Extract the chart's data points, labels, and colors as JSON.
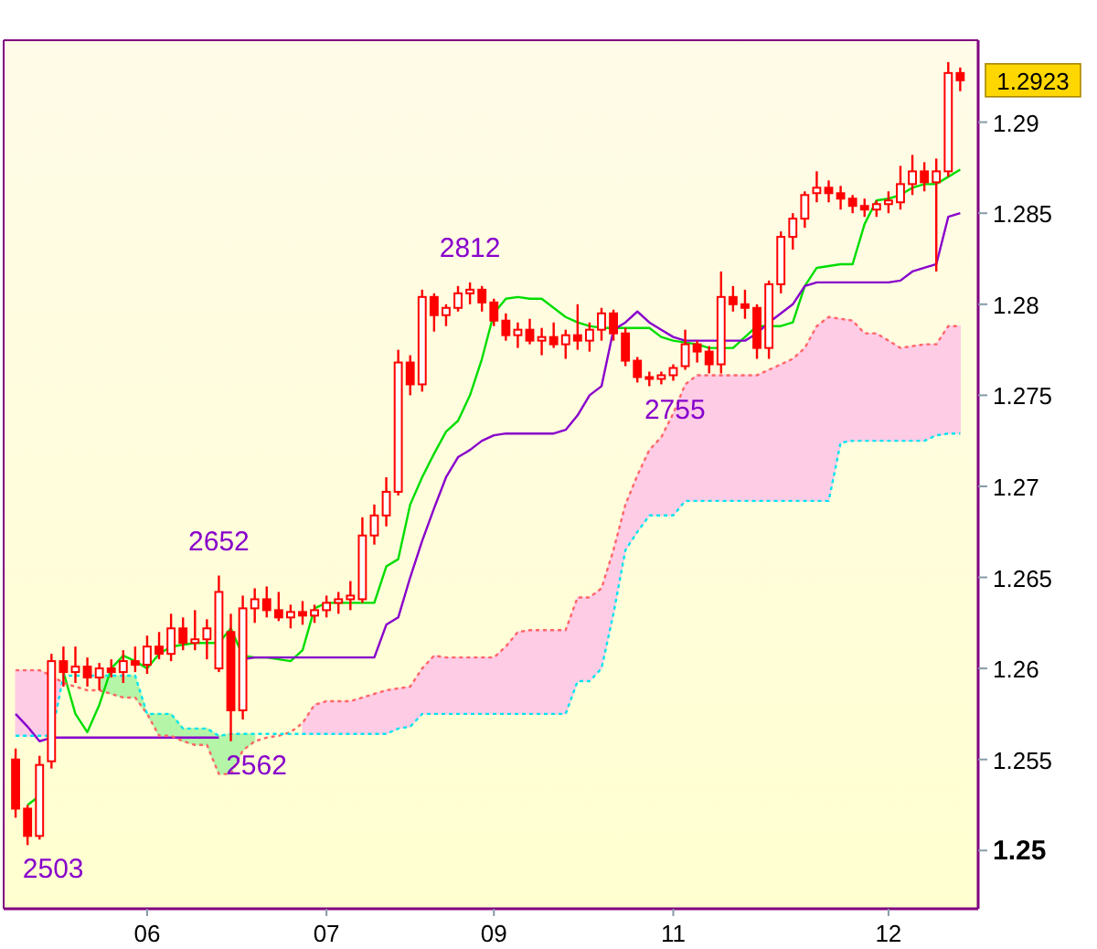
{
  "chart_data": {
    "type": "candlestick",
    "categories": [
      null,
      null,
      null,
      null,
      null,
      null,
      null,
      null,
      null,
      null,
      null,
      "06",
      null,
      null,
      null,
      null,
      null,
      null,
      null,
      null,
      null,
      null,
      null,
      null,
      null,
      null,
      "07",
      null,
      null,
      null,
      null,
      null,
      null,
      null,
      null,
      null,
      null,
      null,
      null,
      null,
      "09",
      null,
      null,
      null,
      null,
      null,
      null,
      null,
      null,
      null,
      null,
      null,
      null,
      null,
      null,
      "11",
      null,
      null,
      null,
      null,
      null,
      null,
      null,
      null,
      null,
      null,
      null,
      null,
      null,
      null,
      null,
      null,
      null,
      "12",
      null,
      null,
      null,
      null,
      null,
      null
    ],
    "ohlc": [
      [
        1.255,
        1.2556,
        1.2518,
        1.2523
      ],
      [
        1.2523,
        1.2525,
        1.2503,
        1.2508
      ],
      [
        1.2508,
        1.2552,
        1.2506,
        1.2547
      ],
      [
        1.2549,
        1.2608,
        1.2545,
        1.2604
      ],
      [
        1.2604,
        1.2612,
        1.259,
        1.2598
      ],
      [
        1.2598,
        1.2612,
        1.2592,
        1.2601
      ],
      [
        1.2601,
        1.2606,
        1.259,
        1.2595
      ],
      [
        1.2595,
        1.2603,
        1.2588,
        1.26
      ],
      [
        1.26,
        1.2605,
        1.2595,
        1.2598
      ],
      [
        1.2598,
        1.261,
        1.2592,
        1.2604
      ],
      [
        1.2604,
        1.2612,
        1.2598,
        1.2602
      ],
      [
        1.2602,
        1.2618,
        1.2597,
        1.2612
      ],
      [
        1.2612,
        1.262,
        1.2605,
        1.2608
      ],
      [
        1.2608,
        1.263,
        1.2604,
        1.2622
      ],
      [
        1.2622,
        1.2628,
        1.261,
        1.2614
      ],
      [
        1.2614,
        1.2632,
        1.261,
        1.2616
      ],
      [
        1.2616,
        1.2627,
        1.2605,
        1.2622
      ],
      [
        1.26,
        1.2651,
        1.2598,
        1.2642
      ],
      [
        1.262,
        1.263,
        1.256,
        1.2577
      ],
      [
        1.2577,
        1.264,
        1.2572,
        1.2633
      ],
      [
        1.2633,
        1.2644,
        1.2625,
        1.2638
      ],
      [
        1.2638,
        1.2645,
        1.2628,
        1.2632
      ],
      [
        1.2632,
        1.2642,
        1.2626,
        1.2628
      ],
      [
        1.2628,
        1.2635,
        1.2622,
        1.2631
      ],
      [
        1.2631,
        1.2637,
        1.2624,
        1.2629
      ],
      [
        1.2629,
        1.2635,
        1.2625,
        1.2632
      ],
      [
        1.2632,
        1.264,
        1.2628,
        1.2636
      ],
      [
        1.2636,
        1.2642,
        1.263,
        1.2638
      ],
      [
        1.2638,
        1.2648,
        1.2632,
        1.264
      ],
      [
        1.2638,
        1.2683,
        1.2636,
        1.2673
      ],
      [
        1.2673,
        1.269,
        1.2668,
        1.2684
      ],
      [
        1.2684,
        1.2705,
        1.2678,
        1.2697
      ],
      [
        1.2697,
        1.2775,
        1.2695,
        1.2768
      ],
      [
        1.2768,
        1.2772,
        1.275,
        1.2756
      ],
      [
        1.2756,
        1.2808,
        1.2752,
        1.2804
      ],
      [
        1.2804,
        1.2806,
        1.2785,
        1.2794
      ],
      [
        1.2794,
        1.28,
        1.2788,
        1.2798
      ],
      [
        1.2798,
        1.281,
        1.2796,
        1.2806
      ],
      [
        1.2806,
        1.2812,
        1.28,
        1.2808
      ],
      [
        1.2808,
        1.281,
        1.2796,
        1.2801
      ],
      [
        1.2801,
        1.2803,
        1.2788,
        1.2791
      ],
      [
        1.2791,
        1.2795,
        1.278,
        1.2783
      ],
      [
        1.2783,
        1.279,
        1.2776,
        1.2786
      ],
      [
        1.2786,
        1.2792,
        1.2778,
        1.278
      ],
      [
        1.278,
        1.2787,
        1.2772,
        1.2782
      ],
      [
        1.2782,
        1.279,
        1.2776,
        1.2778
      ],
      [
        1.2778,
        1.2786,
        1.277,
        1.2783
      ],
      [
        1.2783,
        1.28,
        1.2775,
        1.278
      ],
      [
        1.278,
        1.279,
        1.2774,
        1.2786
      ],
      [
        1.2786,
        1.2798,
        1.278,
        1.2795
      ],
      [
        1.2795,
        1.2797,
        1.278,
        1.2784
      ],
      [
        1.2784,
        1.2787,
        1.2766,
        1.2769
      ],
      [
        1.2769,
        1.2771,
        1.2757,
        1.276
      ],
      [
        1.276,
        1.2763,
        1.2755,
        1.2759
      ],
      [
        1.2759,
        1.2763,
        1.2756,
        1.2761
      ],
      [
        1.2761,
        1.2767,
        1.2758,
        1.2765
      ],
      [
        1.2766,
        1.2786,
        1.2764,
        1.2778
      ],
      [
        1.2778,
        1.278,
        1.2768,
        1.2774
      ],
      [
        1.2774,
        1.2777,
        1.2762,
        1.2767
      ],
      [
        1.2767,
        1.2818,
        1.2762,
        1.2804
      ],
      [
        1.2804,
        1.281,
        1.2796,
        1.28
      ],
      [
        1.28,
        1.2808,
        1.2792,
        1.2798
      ],
      [
        1.2798,
        1.28,
        1.277,
        1.2776
      ],
      [
        1.2776,
        1.2813,
        1.277,
        1.2811
      ],
      [
        1.2811,
        1.284,
        1.2806,
        1.2837
      ],
      [
        1.2837,
        1.285,
        1.283,
        1.2847
      ],
      [
        1.2847,
        1.2862,
        1.2842,
        1.286
      ],
      [
        1.2861,
        1.2873,
        1.2856,
        1.2864
      ],
      [
        1.2864,
        1.2868,
        1.2856,
        1.2861
      ],
      [
        1.2861,
        1.2865,
        1.2852,
        1.2858
      ],
      [
        1.2858,
        1.286,
        1.285,
        1.2854
      ],
      [
        1.2854,
        1.2858,
        1.2848,
        1.2852
      ],
      [
        1.2852,
        1.2857,
        1.2848,
        1.2855
      ],
      [
        1.2855,
        1.2862,
        1.285,
        1.2857
      ],
      [
        1.2856,
        1.2876,
        1.2852,
        1.2866
      ],
      [
        1.2866,
        1.2882,
        1.286,
        1.2873
      ],
      [
        1.2873,
        1.2878,
        1.2862,
        1.2867
      ],
      [
        1.2867,
        1.288,
        1.2818,
        1.2873
      ],
      [
        1.2873,
        1.2933,
        1.287,
        1.2927
      ],
      [
        1.2927,
        1.293,
        1.2917,
        1.2923
      ]
    ],
    "series": [
      {
        "type": "line",
        "color": "#00dd00",
        "line_style": "solid",
        "values": [
          null,
          1.2525,
          1.253,
          null,
          1.2598,
          1.2575,
          1.2565,
          1.258,
          1.26,
          1.2607,
          1.2604,
          1.26,
          1.2608,
          1.2612,
          1.2613,
          1.2614,
          1.2614,
          1.2614,
          1.2622,
          1.2607,
          1.2606,
          1.2606,
          1.2605,
          1.2604,
          1.261,
          1.2633,
          1.2636,
          1.2636,
          1.2636,
          1.2636,
          1.2636,
          1.2656,
          1.266,
          1.269,
          1.2705,
          1.2718,
          1.273,
          1.2736,
          1.275,
          1.277,
          1.2795,
          1.2803,
          1.2804,
          1.2803,
          1.2803,
          1.2798,
          1.2793,
          1.279,
          1.2788,
          1.2787,
          1.2787,
          1.2787,
          1.2787,
          1.2787,
          1.2782,
          1.278,
          1.2779,
          1.2778,
          1.2776,
          1.2776,
          1.2776,
          1.2782,
          1.2788,
          1.2788,
          1.2788,
          1.279,
          1.281,
          1.282,
          1.2821,
          1.2822,
          1.2822,
          1.2844,
          1.2857,
          1.2858,
          1.286,
          1.2864,
          1.2866,
          1.2866,
          1.287,
          1.2874
        ]
      },
      {
        "type": "line",
        "color": "#8800cc",
        "line_style": "solid",
        "values": [
          1.2575,
          1.2568,
          1.256,
          1.2562,
          1.2562,
          1.2562,
          1.2562,
          1.2562,
          1.2562,
          1.2562,
          1.2562,
          1.2562,
          1.2562,
          1.2562,
          1.2562,
          1.2562,
          1.2562,
          1.2562,
          null,
          1.2605,
          1.2606,
          1.2606,
          1.2606,
          1.2606,
          1.2606,
          1.2606,
          1.2606,
          1.2606,
          1.2606,
          1.2606,
          1.2606,
          1.2624,
          1.2628,
          1.265,
          1.267,
          1.2688,
          1.2705,
          1.2716,
          1.272,
          1.2725,
          1.2728,
          1.2729,
          1.2729,
          1.2729,
          1.2729,
          1.2729,
          1.2731,
          1.2739,
          1.275,
          1.2755,
          1.2786,
          1.279,
          1.2796,
          1.279,
          1.2786,
          1.2782,
          1.278,
          1.278,
          1.278,
          1.278,
          1.278,
          1.278,
          1.2784,
          1.279,
          1.2795,
          1.28,
          1.281,
          1.2812,
          1.2812,
          1.2812,
          1.2812,
          1.2812,
          1.2812,
          1.2812,
          1.2813,
          1.2818,
          1.282,
          1.2822,
          1.2848,
          1.285
        ]
      },
      {
        "type": "line",
        "color": "#ff6666",
        "line_style": "dotted",
        "lower": [
          1.2563,
          1.2563,
          1.2563,
          1.2563,
          1.2596,
          null,
          null,
          null,
          null,
          null,
          null,
          null,
          null,
          null,
          null,
          null,
          null,
          null,
          null,
          null,
          null,
          null,
          null,
          null,
          1.2564,
          1.2564,
          1.2564,
          1.2564,
          1.2564,
          1.2564,
          1.2564,
          1.2564,
          1.2567,
          1.2568,
          1.2575,
          1.2575,
          1.2575,
          1.2575,
          1.2575,
          1.2575,
          1.2575,
          1.2575,
          1.2575,
          1.2575,
          1.2575,
          1.2575,
          1.2575,
          1.2593,
          1.2593,
          1.26,
          1.263,
          1.2665,
          1.2675,
          1.2684,
          1.2684,
          1.2684,
          1.2692,
          1.2692,
          1.2692,
          1.2692,
          1.2692,
          1.2692,
          1.2692,
          1.2692,
          1.2692,
          1.2692,
          1.2692,
          1.2692,
          1.2692,
          1.2724,
          1.2725,
          1.2725,
          1.2725,
          1.2725,
          1.2725,
          1.2725,
          1.2725,
          1.2728,
          1.2729,
          1.2729
        ],
        "upper": [
          1.2599,
          1.2599,
          1.2599,
          1.2596,
          1.2592,
          null,
          null,
          null,
          null,
          null,
          null,
          null,
          null,
          null,
          null,
          null,
          null,
          null,
          null,
          null,
          null,
          null,
          null,
          null,
          1.257,
          1.258,
          1.2582,
          1.2582,
          1.2582,
          1.2584,
          1.2586,
          1.2588,
          1.2589,
          1.259,
          1.26,
          1.2607,
          1.2606,
          1.2606,
          1.2606,
          1.2606,
          1.2606,
          1.2612,
          1.262,
          1.2621,
          1.2621,
          1.2621,
          1.2621,
          1.2639,
          1.2639,
          1.2644,
          1.2665,
          1.269,
          1.2706,
          1.272,
          1.2727,
          1.274,
          1.2756,
          1.2761,
          1.2761,
          1.2761,
          1.2761,
          1.2761,
          1.2761,
          1.2764,
          1.2767,
          1.277,
          1.2776,
          1.2788,
          1.2793,
          1.2792,
          1.2791,
          1.2784,
          1.2784,
          1.278,
          1.2776,
          1.2777,
          1.2778,
          1.2778,
          1.2788,
          1.2788
        ],
        "values": [
          1.2599,
          1.2599,
          1.2599,
          1.2596,
          1.2592,
          1.259,
          1.2588,
          1.2588,
          1.2586,
          1.2584,
          1.2584,
          1.2575,
          1.2563,
          1.2563,
          1.256,
          1.2558,
          1.2558,
          1.2542,
          1.2542,
          1.2555,
          1.256,
          1.2562,
          1.2563,
          1.2565,
          1.257,
          1.258,
          1.2582,
          1.2582,
          1.2582,
          1.2584,
          1.2586,
          1.2588,
          1.2589,
          1.259,
          1.26,
          1.2607,
          1.2606,
          1.2606,
          1.2606,
          1.2606,
          1.2606,
          1.2612,
          1.262,
          1.2621,
          1.2621,
          1.2621,
          1.2621,
          1.2639,
          1.2639,
          1.2644,
          1.2665,
          1.269,
          1.2706,
          1.272,
          1.2727,
          1.274,
          1.2756,
          1.2761,
          1.2761,
          1.2761,
          1.2761,
          1.2761,
          1.2761,
          1.2764,
          1.2767,
          1.277,
          1.2776,
          1.2788,
          1.2793,
          1.2792,
          1.2791,
          1.2784,
          1.2784,
          1.278,
          1.2776,
          1.2777,
          1.2778,
          1.2778,
          1.2788,
          1.2788
        ]
      },
      {
        "type": "line",
        "color": "#00e5ee",
        "line_style": "dotted",
        "lower": [
          null,
          null,
          null,
          null,
          null,
          null,
          null,
          1.2588,
          1.2586,
          1.2584,
          1.2584,
          1.2575,
          1.2563,
          1.2563,
          1.256,
          1.2558,
          1.2558,
          1.2542,
          1.2542,
          1.2555,
          1.256,
          null,
          null,
          null,
          null,
          null,
          null,
          null,
          null,
          null,
          null,
          null,
          null,
          null,
          null,
          null,
          null,
          null,
          null,
          null,
          null,
          null,
          null,
          null,
          null,
          null,
          null,
          null,
          null,
          null,
          null,
          null,
          null,
          null,
          null,
          null,
          null,
          null,
          null,
          null,
          null,
          null,
          null,
          null,
          null,
          null,
          null,
          null,
          null,
          null,
          null,
          null,
          null,
          null,
          null,
          null,
          null,
          null,
          null,
          null
        ],
        "upper": [
          null,
          null,
          null,
          null,
          null,
          null,
          null,
          1.2596,
          1.2596,
          1.2596,
          1.2596,
          1.2575,
          1.2575,
          1.2575,
          1.2567,
          1.2567,
          1.2567,
          1.2563,
          1.2564,
          1.2564,
          1.2564,
          null,
          null,
          null,
          null,
          null,
          null,
          null,
          null,
          null,
          null,
          null,
          null,
          null,
          null,
          null,
          null,
          null,
          null,
          null,
          null,
          null,
          null,
          null,
          null,
          null,
          null,
          null,
          null,
          null,
          null,
          null,
          null,
          null,
          null,
          null,
          null,
          null,
          null,
          null,
          null,
          null,
          null,
          null,
          null,
          null,
          null,
          null,
          null,
          null,
          null,
          null,
          null,
          null,
          null,
          null,
          null,
          null,
          null,
          null
        ],
        "values": [
          1.2563,
          1.2563,
          1.2563,
          1.2563,
          1.2596,
          1.2596,
          1.2596,
          1.2596,
          1.2596,
          1.2596,
          1.2596,
          1.2575,
          1.2575,
          1.2575,
          1.2567,
          1.2567,
          1.2567,
          1.2563,
          1.2564,
          1.2564,
          1.2564,
          1.2564,
          1.2564,
          1.2564,
          1.2564,
          1.2564,
          1.2564,
          1.2564,
          1.2564,
          1.2564,
          1.2564,
          1.2564,
          1.2567,
          1.2568,
          1.2575,
          1.2575,
          1.2575,
          1.2575,
          1.2575,
          1.2575,
          1.2575,
          1.2575,
          1.2575,
          1.2575,
          1.2575,
          1.2575,
          1.2575,
          1.2593,
          1.2593,
          1.26,
          1.263,
          1.2665,
          1.2675,
          1.2684,
          1.2684,
          1.2684,
          1.2692,
          1.2692,
          1.2692,
          1.2692,
          1.2692,
          1.2692,
          1.2692,
          1.2692,
          1.2692,
          1.2692,
          1.2692,
          1.2692,
          1.2692,
          1.2724,
          1.2725,
          1.2725,
          1.2725,
          1.2725,
          1.2725,
          1.2725,
          1.2725,
          1.2728,
          1.2729,
          1.2729
        ]
      }
    ],
    "ylim": [
      1.2468,
      1.2945
    ],
    "yticks": [
      1.25,
      1.255,
      1.26,
      1.265,
      1.27,
      1.275,
      1.28,
      1.285,
      1.29
    ],
    "annotations": [
      "2503",
      {
        "text": "2652",
        "y": 1.2651
      },
      {
        "text": "2562",
        "y": 1.256
      },
      {
        "text": "2812",
        "y": 1.2812
      },
      {
        "text": "2755",
        "y": 1.2755
      },
      "1.2923"
    ],
    "grid": false
  }
}
